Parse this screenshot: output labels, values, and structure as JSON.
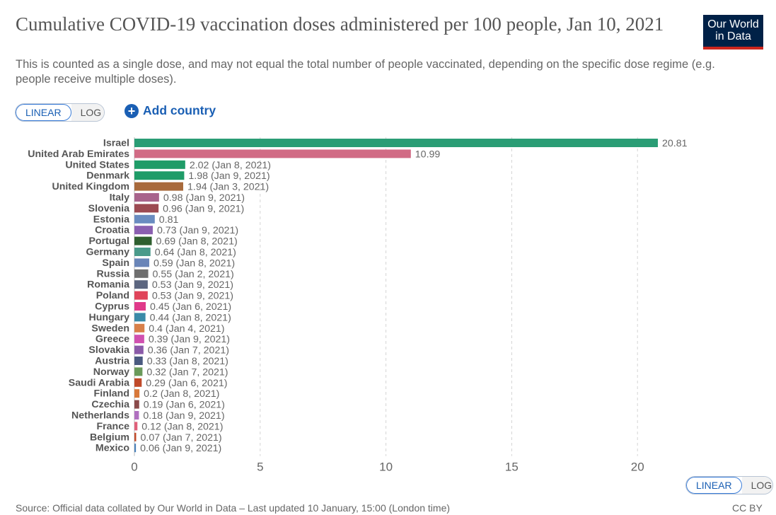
{
  "header": {
    "title": "Cumulative COVID-19 vaccination doses administered per 100 people, Jan 10, 2021",
    "subtitle": "This is counted as a single dose, and may not equal the total number of people vaccinated, depending on the specific dose regime (e.g. people receive multiple doses).",
    "logo_line1": "Our World",
    "logo_line2": "in Data"
  },
  "controls": {
    "linear_label": "LINEAR",
    "log_label": "LOG",
    "add_country_label": "Add country",
    "add_icon": "plus-circle-icon"
  },
  "footer": {
    "source": "Source: Official data collated by Our World in Data – Last updated 10 January, 15:00 (London time)",
    "license": "CC BY"
  },
  "chart_data": {
    "type": "bar",
    "orientation": "horizontal",
    "xlim": [
      0,
      20.81
    ],
    "x_ticks": [
      0,
      5,
      10,
      15,
      20
    ],
    "grid": "vertical dashed",
    "categories": [
      "Israel",
      "United Arab Emirates",
      "United States",
      "Denmark",
      "United Kingdom",
      "Italy",
      "Slovenia",
      "Estonia",
      "Croatia",
      "Portugal",
      "Germany",
      "Spain",
      "Russia",
      "Romania",
      "Poland",
      "Cyprus",
      "Hungary",
      "Sweden",
      "Greece",
      "Slovakia",
      "Austria",
      "Norway",
      "Saudi Arabia",
      "Finland",
      "Czechia",
      "Netherlands",
      "France",
      "Belgium",
      "Mexico"
    ],
    "values": [
      20.81,
      10.99,
      2.02,
      1.98,
      1.94,
      0.98,
      0.96,
      0.81,
      0.73,
      0.69,
      0.64,
      0.59,
      0.55,
      0.53,
      0.53,
      0.45,
      0.44,
      0.4,
      0.39,
      0.36,
      0.33,
      0.32,
      0.29,
      0.2,
      0.19,
      0.18,
      0.12,
      0.07,
      0.06
    ],
    "value_labels": [
      "20.81",
      "10.99",
      "2.02 (Jan 8, 2021)",
      "1.98 (Jan 9, 2021)",
      "1.94 (Jan 3, 2021)",
      "0.98 (Jan 9, 2021)",
      "0.96 (Jan 9, 2021)",
      "0.81",
      "0.73 (Jan 9, 2021)",
      "0.69 (Jan 8, 2021)",
      "0.64 (Jan 8, 2021)",
      "0.59 (Jan 8, 2021)",
      "0.55 (Jan 2, 2021)",
      "0.53 (Jan 9, 2021)",
      "0.53 (Jan 9, 2021)",
      "0.45 (Jan 6, 2021)",
      "0.44 (Jan 8, 2021)",
      "0.4 (Jan 4, 2021)",
      "0.39 (Jan 9, 2021)",
      "0.36 (Jan 7, 2021)",
      "0.33 (Jan 8, 2021)",
      "0.32 (Jan 7, 2021)",
      "0.29 (Jan 6, 2021)",
      "0.2 (Jan 8, 2021)",
      "0.19 (Jan 6, 2021)",
      "0.18 (Jan 9, 2021)",
      "0.12 (Jan 8, 2021)",
      "0.07 (Jan 7, 2021)",
      "0.06 (Jan 9, 2021)"
    ],
    "colors": [
      "#2a9d75",
      "#d16b85",
      "#1f9c68",
      "#1f9c68",
      "#a86a3c",
      "#a8648c",
      "#9c4a52",
      "#6a8cc0",
      "#8a5fb0",
      "#2f5f2f",
      "#4a9a8a",
      "#6a85b8",
      "#6e6e6e",
      "#5c6680",
      "#e0445a",
      "#e03a8a",
      "#3a8aa8",
      "#d8804a",
      "#d050b0",
      "#8a5aa8",
      "#4a5a80",
      "#6a9a5a",
      "#c04a2a",
      "#d8783a",
      "#8a4a4a",
      "#b070c0",
      "#e0607a",
      "#c04a2a",
      "#4a80b8"
    ]
  }
}
